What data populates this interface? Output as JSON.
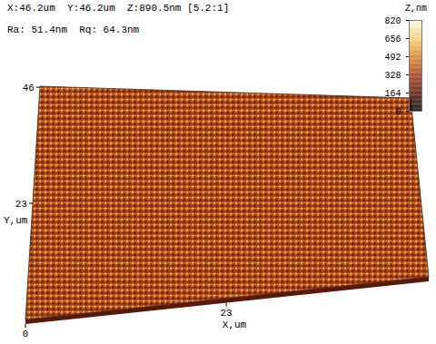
{
  "chart_data": {
    "type": "surface",
    "header": [
      "X:46.2um  Y:46.2um  Z:890.5nm [5.2:1]",
      "Ra: 51.4nm  Rq: 64.3nm"
    ],
    "x_label": "X,um",
    "y_label": "Y,um",
    "xlim": [
      0,
      46.2
    ],
    "xticks": [
      0,
      23
    ],
    "ylim": [
      0,
      46.2
    ],
    "yticks": [
      23,
      46
    ],
    "colorbar": {
      "label": "Z,nm",
      "range": [
        0,
        820
      ],
      "ticks": [
        0,
        164,
        328,
        492,
        656,
        820
      ],
      "colors": [
        "#000000",
        "#5a1808",
        "#a33c14",
        "#d9852e",
        "#f2d070",
        "#fffbe8"
      ]
    }
  }
}
